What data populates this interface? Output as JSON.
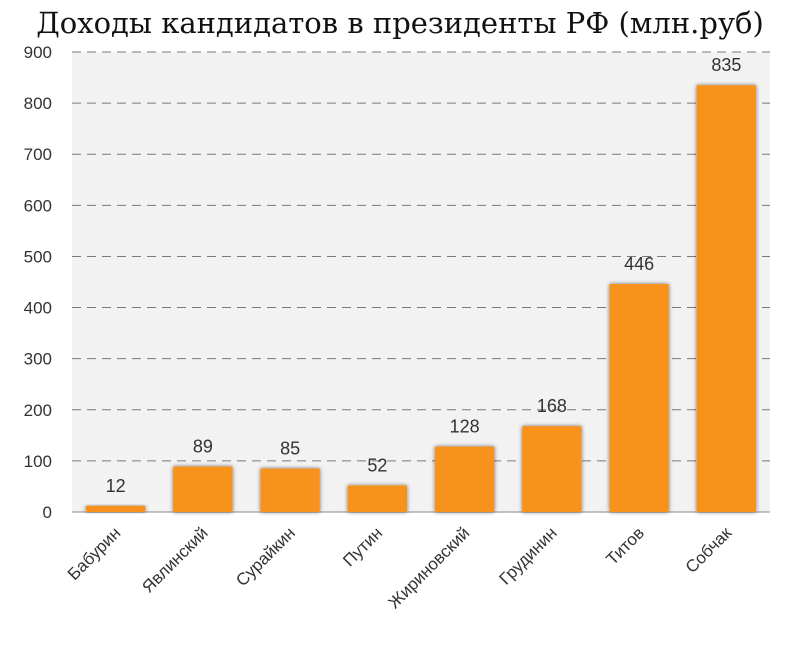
{
  "chart_data": {
    "type": "bar",
    "title": "Доходы кандидатов в президенты РФ (млн.руб)",
    "categories": [
      "Бабурин",
      "Явлинский",
      "Сурайкин",
      "Путин",
      "Жириновский",
      "Грудинин",
      "Титов",
      "Собчак"
    ],
    "values": [
      12,
      89,
      85,
      52,
      128,
      168,
      446,
      835
    ],
    "data_labels": [
      "12",
      "89",
      "85",
      "52",
      "128",
      "168",
      "446",
      "835"
    ],
    "yticks": [
      "0",
      "100",
      "200",
      "300",
      "400",
      "500",
      "600",
      "700",
      "800",
      "900"
    ],
    "ylim": [
      0,
      900
    ],
    "xlabel": "",
    "ylabel": "",
    "grid": true,
    "bar_color": "#f7931e",
    "plot_background": "#f2f2f2",
    "legend": "none"
  }
}
